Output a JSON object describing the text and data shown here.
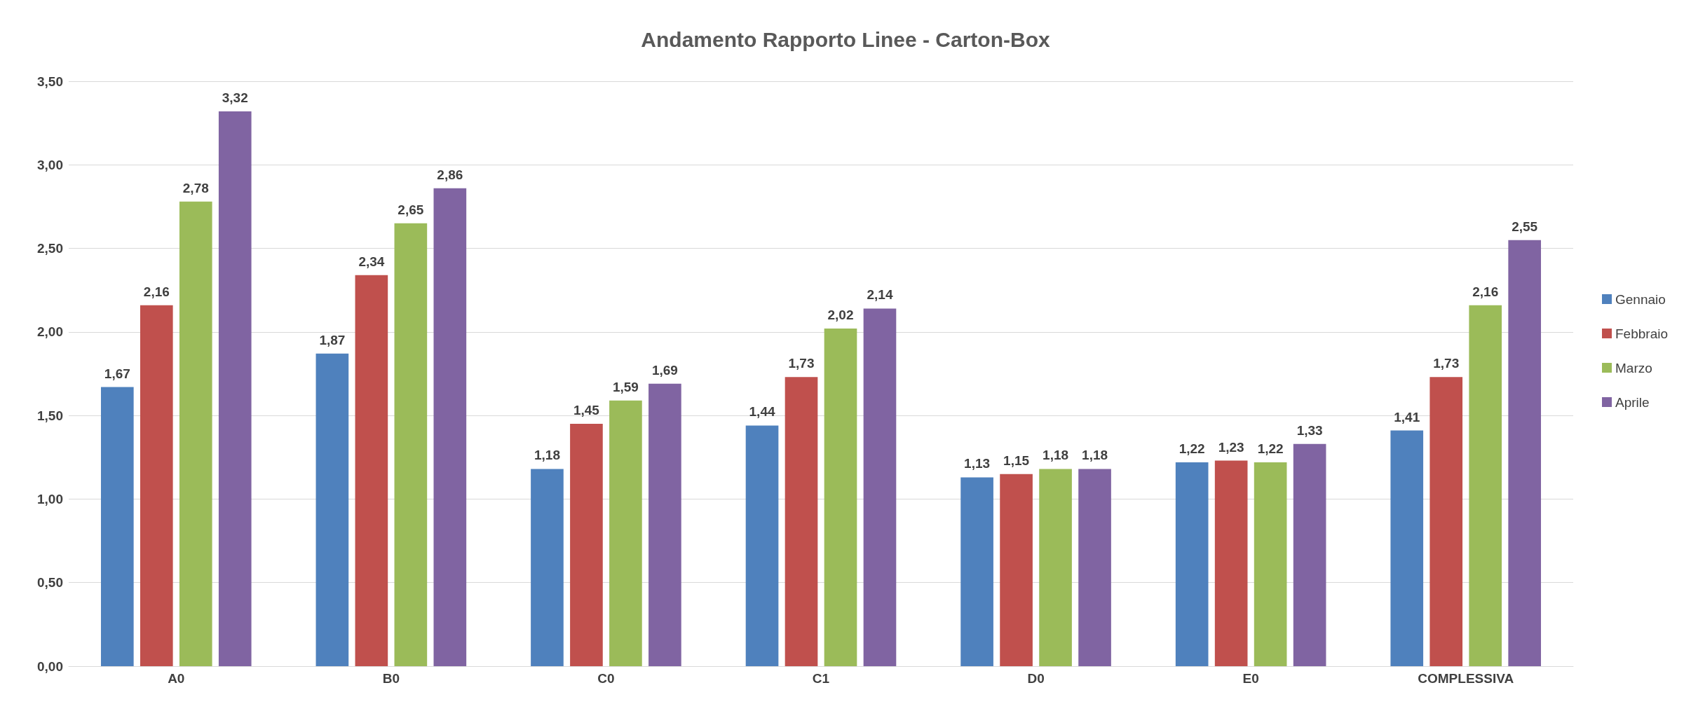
{
  "chart_data": {
    "type": "bar",
    "title": "Andamento Rapporto Linee - Carton-Box",
    "categories": [
      "A0",
      "B0",
      "C0",
      "C1",
      "D0",
      "E0",
      "COMPLESSIVA"
    ],
    "series": [
      {
        "name": "Gennaio",
        "color": "#4f81bd",
        "values": [
          1.67,
          1.87,
          1.18,
          1.44,
          1.13,
          1.22,
          1.41
        ],
        "value_labels": [
          "1,67",
          "1,87",
          "1,18",
          "1,44",
          "1,13",
          "1,22",
          "1,41"
        ]
      },
      {
        "name": "Febbraio",
        "color": "#c0504d",
        "values": [
          2.16,
          2.34,
          1.45,
          1.73,
          1.15,
          1.23,
          1.73
        ],
        "value_labels": [
          "2,16",
          "2,34",
          "1,45",
          "1,73",
          "1,15",
          "1,23",
          "1,73"
        ]
      },
      {
        "name": "Marzo",
        "color": "#9bbb59",
        "values": [
          2.78,
          2.65,
          1.59,
          2.02,
          1.18,
          1.22,
          2.16
        ],
        "value_labels": [
          "2,78",
          "2,65",
          "1,59",
          "2,02",
          "1,18",
          "1,22",
          "2,16"
        ]
      },
      {
        "name": "Aprile",
        "color": "#8064a2",
        "values": [
          3.32,
          2.86,
          1.69,
          2.14,
          1.18,
          1.33,
          2.55
        ],
        "value_labels": [
          "3,32",
          "2,86",
          "1,69",
          "2,14",
          "1,18",
          "1,33",
          "2,55"
        ]
      }
    ],
    "ylim": [
      0,
      3.5
    ],
    "yticks": [
      {
        "value": 0,
        "label": "0,00"
      },
      {
        "value": 0.5,
        "label": "0,50"
      },
      {
        "value": 1,
        "label": "1,00"
      },
      {
        "value": 1.5,
        "label": "1,50"
      },
      {
        "value": 2,
        "label": "2,00"
      },
      {
        "value": 2.5,
        "label": "2,50"
      },
      {
        "value": 3,
        "label": "3,00"
      },
      {
        "value": 3.5,
        "label": "3,50"
      }
    ],
    "grid": "y",
    "legend": "right"
  }
}
